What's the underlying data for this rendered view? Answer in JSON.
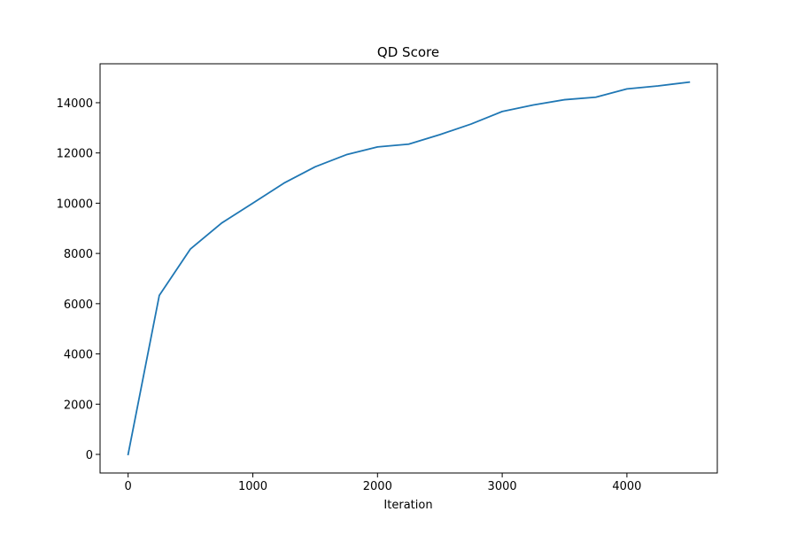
{
  "chart_data": {
    "type": "line",
    "title": "QD Score",
    "xlabel": "Iteration",
    "ylabel": "",
    "xlim": [
      -225,
      4725
    ],
    "ylim": [
      -740,
      15550
    ],
    "xticks": [
      0,
      1000,
      2000,
      3000,
      4000
    ],
    "yticks": [
      0,
      2000,
      4000,
      6000,
      8000,
      10000,
      12000,
      14000
    ],
    "grid": false,
    "legend": "none",
    "series": [
      {
        "color": "#1f77b4",
        "x": [
          0,
          250,
          500,
          750,
          1000,
          1250,
          1500,
          1750,
          2000,
          2250,
          2500,
          2750,
          3000,
          3250,
          3500,
          3750,
          4000,
          4250,
          4500
        ],
        "y": [
          0,
          6330,
          8180,
          9210,
          10000,
          10800,
          11450,
          11930,
          12240,
          12350,
          12730,
          13150,
          13650,
          13910,
          14120,
          14220,
          14550,
          14670,
          14820
        ]
      }
    ]
  }
}
